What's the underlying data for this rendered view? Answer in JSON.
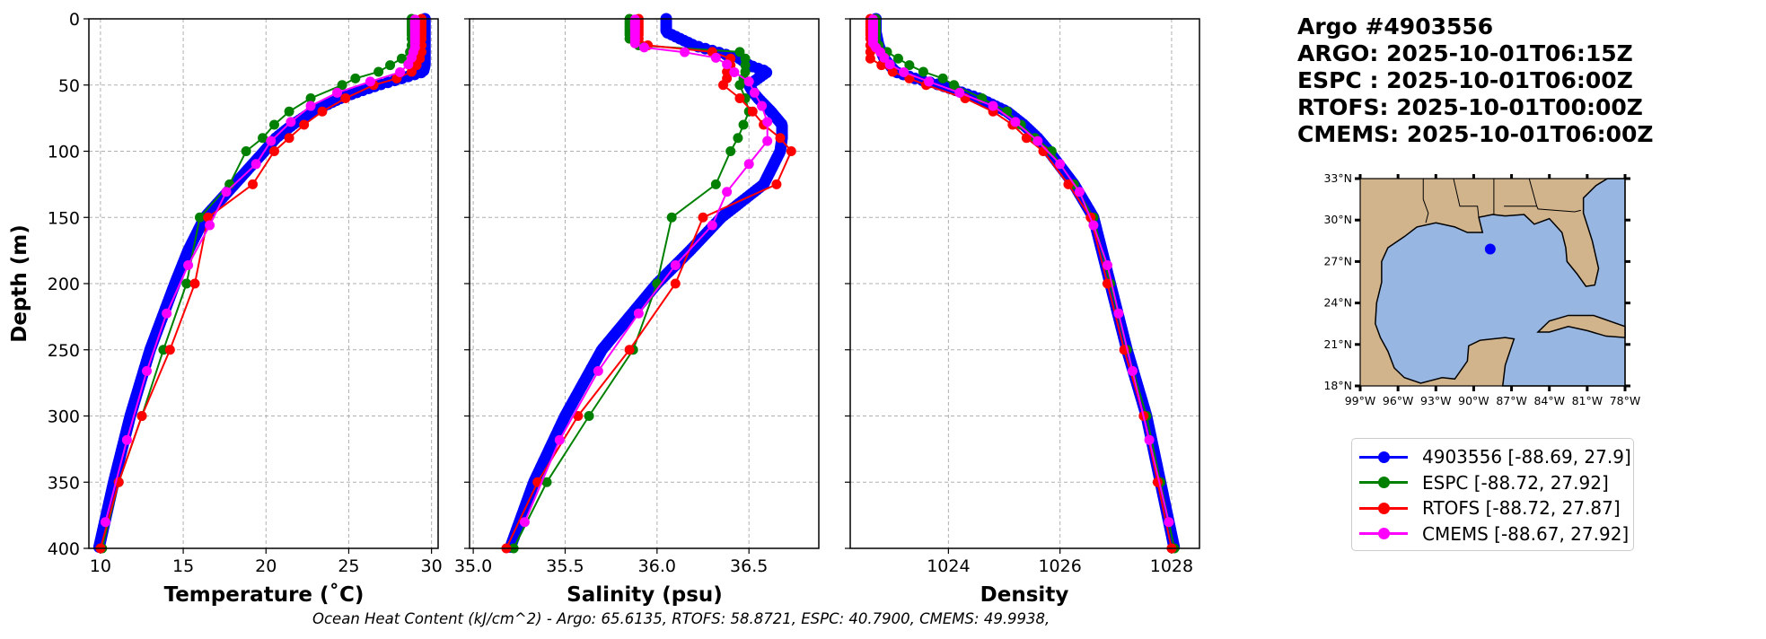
{
  "header": {
    "lines": [
      "Argo #4903556",
      "ARGO: 2025-10-01T06:15Z",
      "ESPC : 2025-10-01T06:00Z",
      "RTOFS: 2025-10-01T00:00Z",
      "CMEMS: 2025-10-01T06:00Z"
    ]
  },
  "footer": "Ocean Heat Content (kJ/cm^2) - Argo: 65.6135,  RTOFS: 58.8721,  ESPC: 40.7900,  CMEMS: 49.9938,",
  "colors": {
    "argo": "#0000ff",
    "espc": "#008000",
    "rtofs": "#ff0000",
    "cmems": "#ff00ff",
    "land": "#d2b48c",
    "ocean": "#97b6e1"
  },
  "legend": {
    "placement": "below-map",
    "entries": [
      {
        "label": "4903556 [-88.69, 27.9]",
        "color": "#0000ff"
      },
      {
        "label": "ESPC [-88.72, 27.92]",
        "color": "#008000"
      },
      {
        "label": "RTOFS [-88.72, 27.87]",
        "color": "#ff0000"
      },
      {
        "label": "CMEMS [-88.67, 27.92]",
        "color": "#ff00ff"
      }
    ]
  },
  "map": {
    "lon_range": [
      -99,
      -78
    ],
    "lat_range": [
      18,
      33
    ],
    "lon_ticks": [
      -99,
      -96,
      -93,
      -90,
      -87,
      -84,
      -81,
      -78
    ],
    "lon_tick_labels": [
      "99°W",
      "96°W",
      "93°W",
      "90°W",
      "87°W",
      "84°W",
      "81°W",
      "78°W"
    ],
    "lat_ticks": [
      18,
      21,
      24,
      27,
      30,
      33
    ],
    "lat_tick_labels": [
      "18°N",
      "21°N",
      "24°N",
      "27°N",
      "30°N",
      "33°N"
    ],
    "float_position": {
      "lon": -88.69,
      "lat": 27.9
    }
  },
  "chart_data": [
    {
      "type": "line",
      "title": "",
      "xlabel": "Temperature (˚C)",
      "ylabel": "Depth (m)",
      "xlim": [
        9.3,
        30.4
      ],
      "ylim": [
        400,
        0
      ],
      "grid": true,
      "xticks": [
        10,
        15,
        20,
        25,
        30
      ],
      "xtick_labels": [
        "10",
        "15",
        "20",
        "25",
        "30"
      ],
      "yticks": [
        0,
        50,
        100,
        150,
        200,
        250,
        300,
        350,
        400
      ],
      "ytick_labels": [
        "0",
        "50",
        "100",
        "150",
        "200",
        "250",
        "300",
        "350",
        "400"
      ],
      "series": [
        {
          "name": "4903556",
          "color": "#0000ff",
          "depth": [
            0,
            10,
            20,
            30,
            35,
            40,
            45,
            50,
            55,
            60,
            70,
            80,
            90,
            100,
            125,
            150,
            175,
            200,
            250,
            300,
            350,
            400
          ],
          "values": [
            29.6,
            29.6,
            29.6,
            29.6,
            29.6,
            29.5,
            28.2,
            26.8,
            25.6,
            24.5,
            22.8,
            21.6,
            20.6,
            19.9,
            18.1,
            16.3,
            15.3,
            14.5,
            13.0,
            11.8,
            10.8,
            9.9
          ]
        },
        {
          "name": "ESPC",
          "color": "#008000",
          "depth": [
            0,
            2,
            4,
            6,
            8,
            10,
            12,
            15,
            20,
            25,
            30,
            35,
            40,
            45,
            50,
            60,
            70,
            80,
            90,
            100,
            125,
            150,
            200,
            250,
            300,
            350,
            400
          ],
          "values": [
            28.8,
            28.8,
            28.8,
            28.8,
            28.8,
            28.8,
            28.8,
            28.8,
            28.8,
            28.7,
            28.2,
            27.5,
            26.8,
            25.4,
            24.6,
            22.7,
            21.4,
            20.5,
            19.8,
            18.8,
            17.8,
            16.0,
            15.2,
            13.8,
            12.5,
            11.1,
            10.1
          ]
        },
        {
          "name": "RTOFS",
          "color": "#ff0000",
          "depth": [
            0,
            2,
            4,
            6,
            8,
            10,
            12,
            15,
            20,
            25,
            30,
            35,
            40,
            45,
            50,
            60,
            70,
            80,
            90,
            100,
            125,
            150,
            200,
            250,
            300,
            350,
            400
          ],
          "values": [
            29.4,
            29.4,
            29.4,
            29.4,
            29.4,
            29.4,
            29.4,
            29.4,
            29.4,
            29.4,
            29.3,
            29.1,
            28.8,
            27.9,
            26.5,
            24.8,
            23.4,
            22.3,
            21.4,
            20.5,
            19.2,
            16.5,
            15.7,
            14.2,
            12.5,
            11.1,
            10.0
          ]
        },
        {
          "name": "CMEMS",
          "color": "#ff00ff",
          "depth": [
            0.5,
            1.5,
            2.6,
            3.8,
            5.1,
            6.4,
            7.9,
            9.6,
            11.4,
            13.5,
            15.8,
            18.5,
            21.6,
            25.2,
            29.4,
            34.4,
            40.3,
            47.4,
            55.8,
            65.8,
            77.9,
            92.3,
            109.7,
            130.7,
            155.9,
            186.1,
            222.5,
            266.0,
            318.1,
            380.2
          ],
          "values": [
            29.0,
            29.0,
            29.0,
            29.0,
            29.0,
            29.0,
            29.0,
            29.0,
            29.0,
            29.0,
            29.0,
            29.0,
            29.0,
            28.9,
            28.8,
            28.6,
            28.1,
            26.3,
            24.3,
            22.7,
            21.5,
            20.3,
            19.4,
            17.6,
            16.6,
            15.3,
            14.0,
            12.8,
            11.6,
            10.3
          ]
        }
      ]
    },
    {
      "type": "line",
      "title": "",
      "xlabel": "Salinity (psu)",
      "ylabel": "",
      "xlim": [
        34.98,
        36.88
      ],
      "ylim": [
        400,
        0
      ],
      "grid": true,
      "xticks": [
        35.0,
        35.5,
        36.0,
        36.5
      ],
      "xtick_labels": [
        "35.0",
        "35.5",
        "36.0",
        "36.5"
      ],
      "yticks": [
        0,
        50,
        100,
        150,
        200,
        250,
        300,
        350,
        400
      ],
      "ytick_labels": [],
      "series": [
        {
          "name": "4903556",
          "color": "#0000ff",
          "depth": [
            0,
            10,
            20,
            30,
            35,
            40,
            45,
            50,
            55,
            60,
            70,
            80,
            90,
            100,
            125,
            150,
            175,
            200,
            250,
            300,
            350,
            400
          ],
          "values": [
            36.05,
            36.05,
            36.2,
            36.45,
            36.5,
            36.6,
            36.55,
            36.5,
            36.52,
            36.55,
            36.62,
            36.68,
            36.68,
            36.67,
            36.58,
            36.35,
            36.18,
            36.0,
            35.7,
            35.5,
            35.33,
            35.2
          ]
        },
        {
          "name": "ESPC",
          "color": "#008000",
          "depth": [
            0,
            2,
            4,
            6,
            8,
            10,
            12,
            15,
            20,
            25,
            30,
            35,
            40,
            45,
            50,
            60,
            70,
            80,
            90,
            100,
            125,
            150,
            200,
            250,
            300,
            350,
            400
          ],
          "values": [
            35.85,
            35.85,
            35.85,
            35.85,
            35.85,
            35.85,
            35.85,
            35.85,
            35.9,
            36.45,
            36.48,
            36.48,
            36.48,
            36.47,
            36.45,
            36.48,
            36.5,
            36.47,
            36.44,
            36.4,
            36.32,
            36.08,
            36.0,
            35.87,
            35.63,
            35.4,
            35.22
          ]
        },
        {
          "name": "RTOFS",
          "color": "#ff0000",
          "depth": [
            0,
            2,
            4,
            6,
            8,
            10,
            12,
            15,
            20,
            25,
            30,
            35,
            40,
            45,
            50,
            60,
            70,
            80,
            90,
            100,
            125,
            150,
            200,
            250,
            300,
            350,
            400
          ],
          "values": [
            35.9,
            35.9,
            35.9,
            35.9,
            35.9,
            35.9,
            35.9,
            35.9,
            35.95,
            36.3,
            36.4,
            36.4,
            36.38,
            36.38,
            36.36,
            36.45,
            36.52,
            36.58,
            36.67,
            36.73,
            36.65,
            36.25,
            36.1,
            35.85,
            35.57,
            35.35,
            35.18
          ]
        },
        {
          "name": "CMEMS",
          "color": "#ff00ff",
          "depth": [
            0.5,
            1.5,
            2.6,
            3.8,
            5.1,
            6.4,
            7.9,
            9.6,
            11.4,
            13.5,
            15.8,
            18.5,
            21.6,
            25.2,
            29.4,
            34.4,
            40.3,
            47.4,
            55.8,
            65.8,
            77.9,
            92.3,
            109.7,
            130.7,
            155.9,
            186.1,
            222.5,
            266.0,
            318.1,
            380.2
          ],
          "values": [
            35.88,
            35.88,
            35.88,
            35.88,
            35.88,
            35.88,
            35.88,
            35.88,
            35.88,
            35.88,
            35.88,
            35.88,
            35.93,
            36.15,
            36.32,
            36.38,
            36.42,
            36.5,
            36.53,
            36.57,
            36.6,
            36.6,
            36.5,
            36.38,
            36.3,
            36.1,
            35.9,
            35.68,
            35.47,
            35.28
          ]
        }
      ]
    },
    {
      "type": "line",
      "title": "",
      "xlabel": "Density",
      "ylabel": "",
      "xlim": [
        1022.24,
        1028.5
      ],
      "ylim": [
        400,
        0
      ],
      "grid": true,
      "xticks": [
        1024,
        1026,
        1028
      ],
      "xtick_labels": [
        "1024",
        "1026",
        "1028"
      ],
      "yticks": [
        0,
        50,
        100,
        150,
        200,
        250,
        300,
        350,
        400
      ],
      "ytick_labels": [],
      "series": [
        {
          "name": "4903556",
          "color": "#0000ff",
          "depth": [
            0,
            10,
            20,
            30,
            35,
            40,
            45,
            50,
            55,
            60,
            70,
            80,
            90,
            100,
            125,
            150,
            175,
            200,
            250,
            300,
            350,
            400
          ],
          "values": [
            1022.7,
            1022.7,
            1022.75,
            1022.85,
            1022.95,
            1023.05,
            1023.4,
            1023.85,
            1024.2,
            1024.55,
            1025.05,
            1025.35,
            1025.6,
            1025.8,
            1026.25,
            1026.6,
            1026.75,
            1026.9,
            1027.2,
            1027.55,
            1027.8,
            1028.05
          ]
        },
        {
          "name": "ESPC",
          "color": "#008000",
          "depth": [
            0,
            2,
            4,
            6,
            8,
            10,
            12,
            15,
            20,
            25,
            30,
            35,
            40,
            45,
            50,
            60,
            70,
            80,
            90,
            100,
            125,
            150,
            200,
            250,
            300,
            350,
            400
          ],
          "values": [
            1022.7,
            1022.7,
            1022.7,
            1022.7,
            1022.7,
            1022.7,
            1022.7,
            1022.7,
            1022.75,
            1022.9,
            1023.1,
            1023.3,
            1023.55,
            1023.9,
            1024.1,
            1024.6,
            1025.05,
            1025.3,
            1025.55,
            1025.85,
            1026.25,
            1026.6,
            1026.9,
            1027.2,
            1027.55,
            1027.8,
            1028.05
          ]
        },
        {
          "name": "RTOFS",
          "color": "#ff0000",
          "depth": [
            0,
            2,
            4,
            6,
            8,
            10,
            12,
            15,
            20,
            25,
            30,
            35,
            40,
            45,
            50,
            60,
            70,
            80,
            90,
            100,
            125,
            150,
            200,
            250,
            300,
            350,
            400
          ],
          "values": [
            1022.6,
            1022.6,
            1022.6,
            1022.6,
            1022.6,
            1022.6,
            1022.6,
            1022.6,
            1022.6,
            1022.6,
            1022.6,
            1022.8,
            1023.0,
            1023.3,
            1023.6,
            1024.3,
            1024.8,
            1025.15,
            1025.4,
            1025.7,
            1026.15,
            1026.55,
            1026.85,
            1027.15,
            1027.5,
            1027.75,
            1028.0
          ]
        },
        {
          "name": "CMEMS",
          "color": "#ff00ff",
          "depth": [
            0.5,
            1.5,
            2.6,
            3.8,
            5.1,
            6.4,
            7.9,
            9.6,
            11.4,
            13.5,
            15.8,
            18.5,
            21.6,
            25.2,
            29.4,
            34.4,
            40.3,
            47.4,
            55.8,
            65.8,
            77.9,
            92.3,
            109.7,
            130.7,
            155.9,
            186.1,
            222.5,
            266.0,
            318.1,
            380.2
          ],
          "values": [
            1022.65,
            1022.65,
            1022.65,
            1022.65,
            1022.65,
            1022.65,
            1022.65,
            1022.65,
            1022.65,
            1022.65,
            1022.65,
            1022.65,
            1022.7,
            1022.78,
            1022.85,
            1022.95,
            1023.2,
            1023.65,
            1024.2,
            1024.8,
            1025.2,
            1025.6,
            1026.0,
            1026.35,
            1026.6,
            1026.85,
            1027.05,
            1027.3,
            1027.6,
            1027.95
          ]
        }
      ]
    }
  ]
}
